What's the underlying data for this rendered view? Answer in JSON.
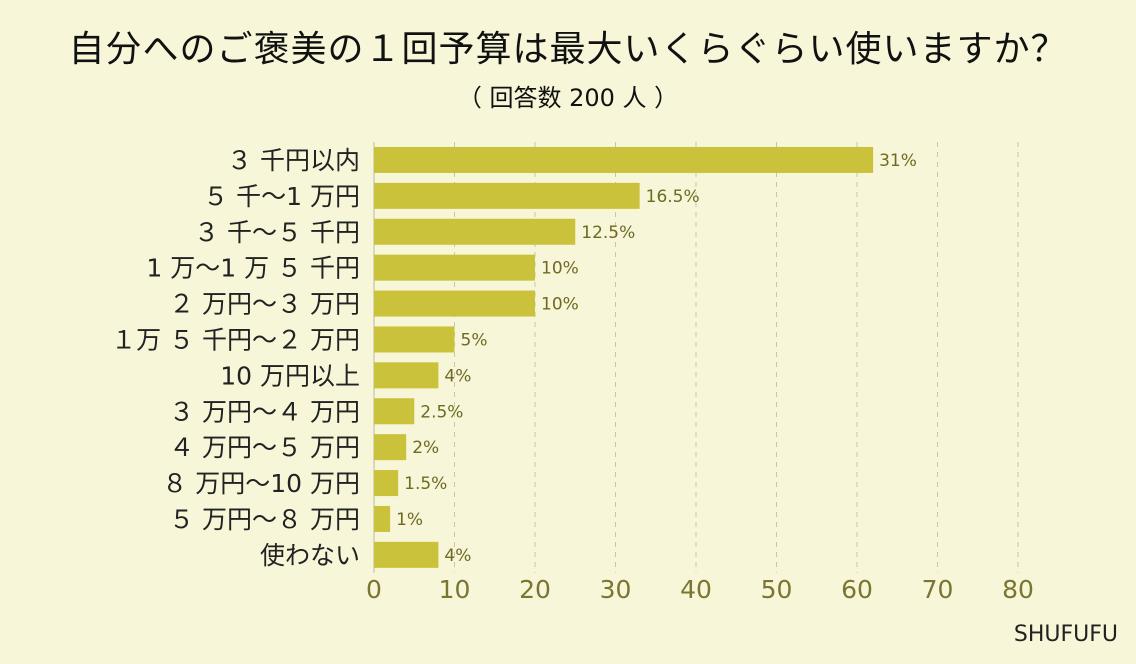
{
  "title": "自分へのご褒美の１回予算は最大いくらぐらい使いますか？",
  "subtitle": "（ 回答数 200 人 ）",
  "brand": "SHUFUFU",
  "colors": {
    "bar": "#c9c23a",
    "background": "#f7f6d8",
    "value_label": "#6e6a22",
    "axis_tick": "#7a7530",
    "category_label": "#222222",
    "grid": "#c8c6ad"
  },
  "chart_data": {
    "type": "bar",
    "orientation": "horizontal",
    "categories": [
      "３ 千円以内",
      "５ 千～1 万円",
      "３ 千～５ 千円",
      "1 万～1 万 ５ 千円",
      "２ 万円～３ 万円",
      "１万 ５ 千円～２ 万円",
      "10 万円以上",
      "３ 万円～４ 万円",
      "４ 万円～５ 万円",
      "８ 万円～10 万円",
      "５ 万円～８ 万円",
      "使わない"
    ],
    "values": [
      62,
      33,
      25,
      20,
      20,
      10,
      8,
      5,
      4,
      3,
      2,
      8
    ],
    "value_labels": [
      "31%",
      "16.5%",
      "12.5%",
      "10%",
      "10%",
      "5%",
      "4%",
      "2.5%",
      "2%",
      "1.5%",
      "1%",
      "4%"
    ],
    "xlim": [
      0,
      80
    ],
    "xticks": [
      "0",
      "10",
      "20",
      "30",
      "40",
      "50",
      "60",
      "70",
      "80"
    ],
    "xlabel": "",
    "ylabel": "",
    "grid": "vertical dashed"
  }
}
